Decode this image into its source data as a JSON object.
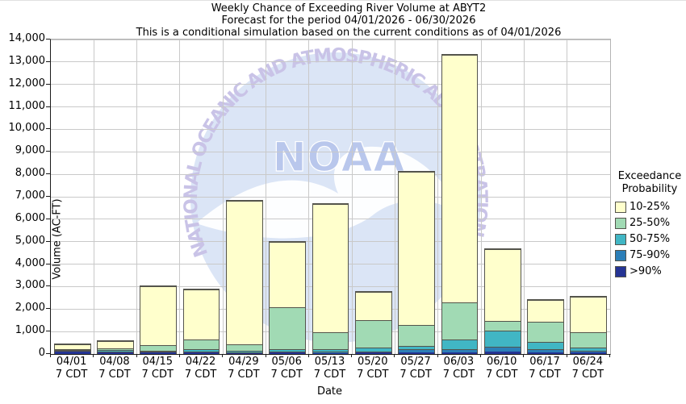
{
  "title": {
    "line1": "Weekly Chance of Exceeding River Volume at ABYT2",
    "line2": "Forecast for the period 04/01/2026 - 06/30/2026",
    "line3": "This is a conditional simulation based on the current conditions as of 04/01/2026"
  },
  "watermark": {
    "org": "NOAA",
    "arc_text": "NATIONAL OCEANIC AND ATMOSPHERIC ADMINISTRATION",
    "circle_color": "#dbe5f6",
    "text_color": "#c9c3e7",
    "wordmark_color": "#b9c7ec"
  },
  "legend": {
    "title_line1": "Exceedance",
    "title_line2": "Probability",
    "items": [
      {
        "label": "10-25%",
        "color": "#FFFFCC"
      },
      {
        "label": "25-50%",
        "color": "#A1DAB4"
      },
      {
        "label": "50-75%",
        "color": "#41B6C4"
      },
      {
        "label": "75-90%",
        "color": "#2C7FB8"
      },
      {
        "label": ">90%",
        "color": "#253494"
      }
    ]
  },
  "chart_data": {
    "type": "bar",
    "stacked": true,
    "title": "Weekly Chance of Exceeding River Volume at ABYT2",
    "xlabel": "Date",
    "ylabel": "Volume (AC-FT)",
    "ylim": [
      0,
      14000
    ],
    "ytick_step": 1000,
    "yticks": [
      "0",
      "1,000",
      "2,000",
      "3,000",
      "4,000",
      "5,000",
      "6,000",
      "7,000",
      "8,000",
      "9,000",
      "10,000",
      "11,000",
      "12,000",
      "13,000",
      "14,000"
    ],
    "grid": true,
    "legend_position": "right",
    "categories": [
      "04/01",
      "04/08",
      "04/15",
      "04/22",
      "04/29",
      "05/06",
      "05/13",
      "05/20",
      "05/27",
      "06/03",
      "06/10",
      "06/17",
      "06/24"
    ],
    "x_sublabel": "7 CDT",
    "series": [
      {
        "name": ">90%",
        "color": "#253494",
        "values": [
          140,
          80,
          60,
          60,
          50,
          60,
          50,
          55,
          70,
          90,
          120,
          65,
          60
        ]
      },
      {
        "name": "75-90%",
        "color": "#2C7FB8",
        "values": [
          15,
          20,
          30,
          40,
          40,
          60,
          50,
          65,
          140,
          140,
          210,
          145,
          95
        ]
      },
      {
        "name": "50-75%",
        "color": "#41B6C4",
        "values": [
          15,
          60,
          60,
          100,
          60,
          110,
          110,
          175,
          160,
          420,
          720,
          355,
          150
        ]
      },
      {
        "name": "25-50%",
        "color": "#A1DAB4",
        "values": [
          20,
          110,
          240,
          450,
          300,
          1870,
          750,
          1230,
          915,
          1670,
          440,
          900,
          680
        ]
      },
      {
        "name": "10-25%",
        "color": "#FFFFCC",
        "values": [
          290,
          330,
          2660,
          2250,
          6420,
          2920,
          5740,
          1275,
          6865,
          11030,
          3210,
          965,
          1595
        ]
      }
    ],
    "totals": [
      480,
      600,
      3050,
      2900,
      6870,
      5020,
      6700,
      2800,
      8150,
      13350,
      4700,
      2430,
      2580
    ]
  }
}
